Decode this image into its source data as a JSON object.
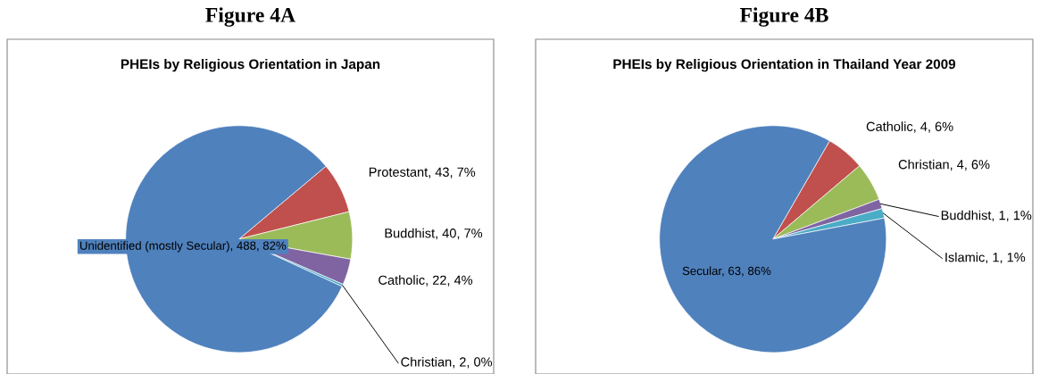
{
  "chart_data": [
    {
      "type": "pie",
      "title": "PHEIs by Religious Orientation in Japan",
      "annotations": [
        "Figure 4A"
      ],
      "categories": [
        "Protestant",
        "Buddhist",
        "Catholic",
        "Christian",
        "Unidentified (mostly Secular)"
      ],
      "values": [
        43,
        40,
        22,
        2,
        488
      ],
      "value_labels": [
        "43, 7%",
        "40, 7%",
        "22, 4%",
        "2, 0%",
        "488, 82%"
      ],
      "colors": [
        "#c0504d",
        "#9bbb59",
        "#8064a2",
        "#4bacc6",
        "#4f81bd"
      ]
    },
    {
      "type": "pie",
      "title": "PHEIs by Religious Orientation in Thailand Year 2009",
      "annotations": [
        "Figure 4B"
      ],
      "categories": [
        "Catholic",
        "Christian",
        "Buddhist",
        "Islamic",
        "Secular"
      ],
      "values": [
        4,
        4,
        1,
        1,
        63
      ],
      "value_labels": [
        "4, 6%",
        "4, 6%",
        "1, 1%",
        "1, 1%",
        "63, 86%"
      ],
      "colors": [
        "#c0504d",
        "#9bbb59",
        "#8064a2",
        "#4bacc6",
        "#4f81bd"
      ]
    }
  ]
}
